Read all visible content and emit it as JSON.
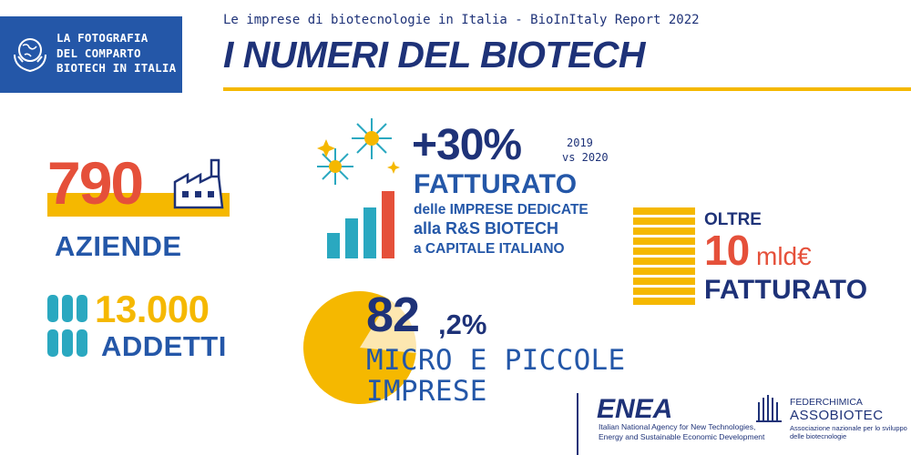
{
  "header": {
    "badge_lines": [
      "LA FOTOGRAFIA",
      "DEL COMPARTO",
      "BIOTECH IN ITALIA"
    ],
    "subtitle": "Le imprese di biotecnologie in Italia - BioInItaly Report 2022",
    "title": "I NUMERI DEL BIOTECH"
  },
  "stats": {
    "aziende": {
      "value": "790",
      "label": "AZIENDE"
    },
    "addetti": {
      "value": "13.000",
      "label": "ADDETTI"
    },
    "fatturato_growth": {
      "value": "+30%",
      "period_line1": "2019",
      "period_line2": "vs 2020",
      "label": "FATTURATO",
      "desc_line1": "delle IMPRESE DEDICATE",
      "desc_line2": "alla R&S BIOTECH",
      "desc_line3": "a CAPITALE ITALIANO"
    },
    "fatturato_total": {
      "prefix": "OLTRE",
      "value": "10",
      "unit": "mld€",
      "label": "FATTURATO"
    },
    "micro_piccole": {
      "value_int": "82",
      "value_dec": ",2%",
      "label_line1": "MICRO E PICCOLE",
      "label_line2": "IMPRESE",
      "share_percent": 82.2
    }
  },
  "logos": {
    "enea": {
      "name": "ENEA",
      "desc_line1": "Italian National Agency for New Technologies,",
      "desc_line2": "Energy and Sustainable Economic Development"
    },
    "federchimica": {
      "line1": "FEDERCHIMICA",
      "line2": "ASSOBIOTEC",
      "desc_line1": "Associazione nazionale per lo sviluppo",
      "desc_line2": "delle biotecnologie"
    }
  },
  "colors": {
    "navy": "#1e3278",
    "blue": "#2457a8",
    "yellow": "#f5b800",
    "red": "#e5503a",
    "teal": "#2aa8c0"
  }
}
